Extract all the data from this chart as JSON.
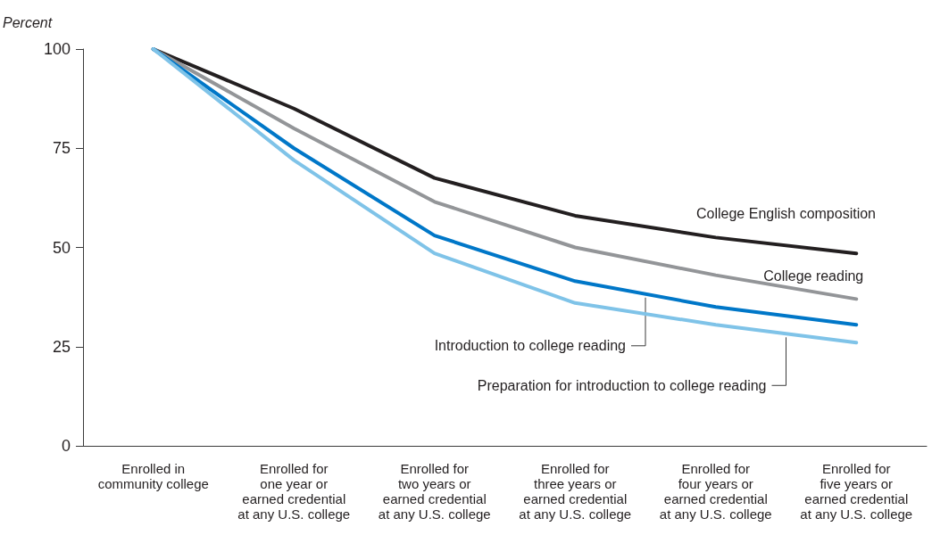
{
  "chart_data": {
    "type": "line",
    "ylabel": "Percent",
    "categories": [
      "Enrolled in\ncommunity college",
      "Enrolled for\none year or\nearned credential\nat any U.S. college",
      "Enrolled for\ntwo years or\nearned credential\nat any U.S. college",
      "Enrolled for\nthree years or\nearned credential\nat any U.S. college",
      "Enrolled for\nfour years or\nearned credential\nat any U.S. college",
      "Enrolled for\nfive years or\nearned credential\nat any U.S. college"
    ],
    "series": [
      {
        "name": "College English composition",
        "color": "#231f20",
        "values": [
          100,
          85,
          67.5,
          58,
          52.5,
          48.5
        ]
      },
      {
        "name": "College reading",
        "color": "#939598",
        "values": [
          100,
          80,
          61.5,
          50,
          43,
          37
        ]
      },
      {
        "name": "Introduction to college reading",
        "color": "#0077c8",
        "values": [
          100,
          75,
          53,
          41.5,
          35,
          30.5
        ]
      },
      {
        "name": "Preparation for introduction to college reading",
        "color": "#7fc3e8",
        "values": [
          100,
          72,
          48.5,
          36,
          30.5,
          26
        ]
      }
    ],
    "ylim": [
      0,
      100
    ],
    "yticks": [
      0,
      25,
      50,
      75,
      100
    ],
    "grid": false,
    "legend": false,
    "marker": "none",
    "line_style": "solid"
  }
}
